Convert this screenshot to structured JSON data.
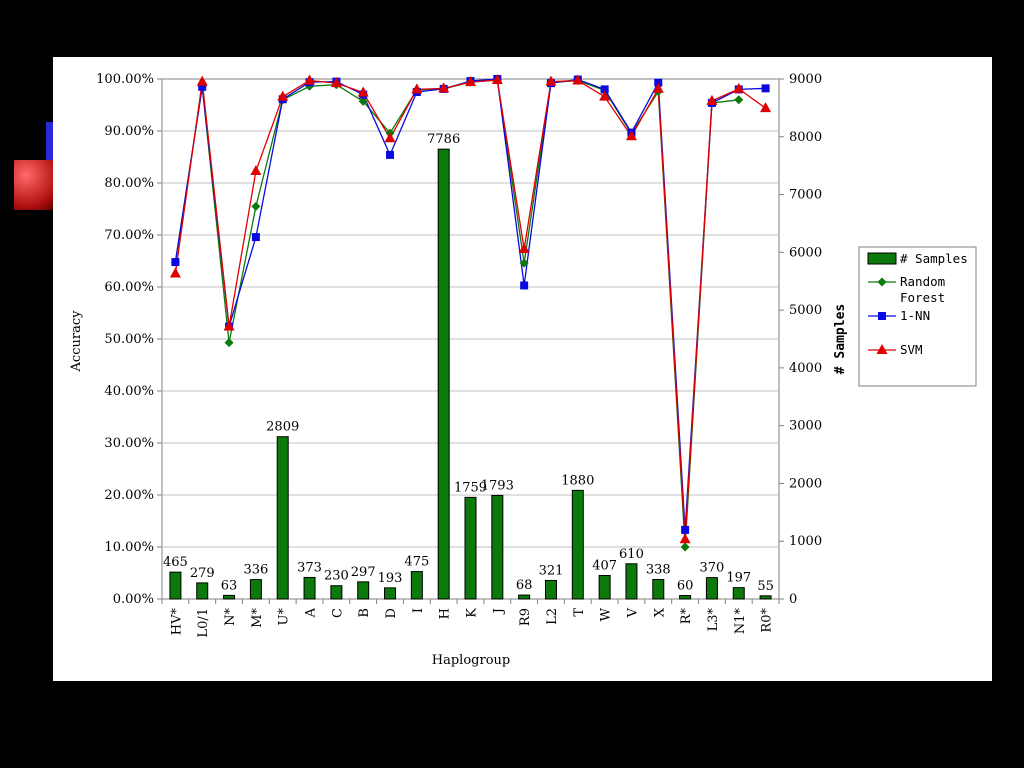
{
  "chart_data": {
    "type": "bar",
    "xlabel": "Haplogroup",
    "ylabel": "Accuracy",
    "y2label": "# Samples",
    "ylim": [
      0,
      100
    ],
    "y2lim": [
      0,
      9000
    ],
    "y_ticks": [
      "0.00%",
      "10.00%",
      "20.00%",
      "30.00%",
      "40.00%",
      "50.00%",
      "60.00%",
      "70.00%",
      "80.00%",
      "90.00%",
      "100.00%"
    ],
    "y2_ticks": [
      "0",
      "1000",
      "2000",
      "3000",
      "4000",
      "5000",
      "6000",
      "7000",
      "8000",
      "9000"
    ],
    "grid": true,
    "legend_position": "right",
    "categories": [
      "HV*",
      "L0/1",
      "N*",
      "M*",
      "U*",
      "A",
      "C",
      "B",
      "D",
      "I",
      "H",
      "K",
      "J",
      "R9",
      "L2",
      "T",
      "W",
      "V",
      "X",
      "R*",
      "L3*",
      "N1*",
      "R0*"
    ],
    "bar_series": {
      "name": "# Samples",
      "color": "#0b7a0b",
      "values": [
        465,
        279,
        63,
        336,
        2809,
        373,
        230,
        297,
        193,
        475,
        7786,
        1759,
        1793,
        68,
        321,
        1880,
        407,
        610,
        338,
        60,
        370,
        197,
        55
      ],
      "labels": [
        "465",
        "279",
        "63",
        "336",
        "2809",
        "373",
        "230",
        "297",
        "193",
        "475",
        "7786",
        "1759",
        "1793",
        "68",
        "321",
        "1880",
        "407",
        "610",
        "338",
        "60",
        "370",
        "197",
        "55"
      ]
    },
    "line_series": [
      {
        "name": "Random Forest",
        "legend_lines": [
          "Random",
          "Forest"
        ],
        "color": "#0b7a0b",
        "marker": "diamond",
        "values": [
          64.8,
          98.5,
          49.3,
          75.5,
          96.0,
          98.6,
          98.9,
          95.7,
          89.6,
          97.9,
          98.1,
          99.4,
          99.8,
          64.6,
          99.3,
          99.7,
          97.8,
          89.5,
          97.6,
          10.0,
          95.4,
          96.0,
          null
        ]
      },
      {
        "name": "1-NN",
        "legend_lines": [
          "1-NN"
        ],
        "color": "#0a0ae0",
        "marker": "square",
        "values": [
          64.8,
          98.5,
          52.4,
          69.6,
          96.1,
          99.4,
          99.5,
          97.0,
          85.4,
          97.5,
          98.1,
          99.6,
          100.0,
          60.3,
          99.2,
          99.9,
          98.0,
          89.7,
          99.3,
          13.3,
          95.4,
          98.0,
          98.2
        ]
      },
      {
        "name": "SVM",
        "legend_lines": [
          "SVM"
        ],
        "color": "#e00000",
        "marker": "triangle",
        "values": [
          62.6,
          99.5,
          52.4,
          82.3,
          96.6,
          99.7,
          99.2,
          97.4,
          88.6,
          98.0,
          98.2,
          99.4,
          99.8,
          67.3,
          99.5,
          99.7,
          96.6,
          89.0,
          98.1,
          11.5,
          95.8,
          98.1,
          94.4
        ]
      }
    ]
  }
}
